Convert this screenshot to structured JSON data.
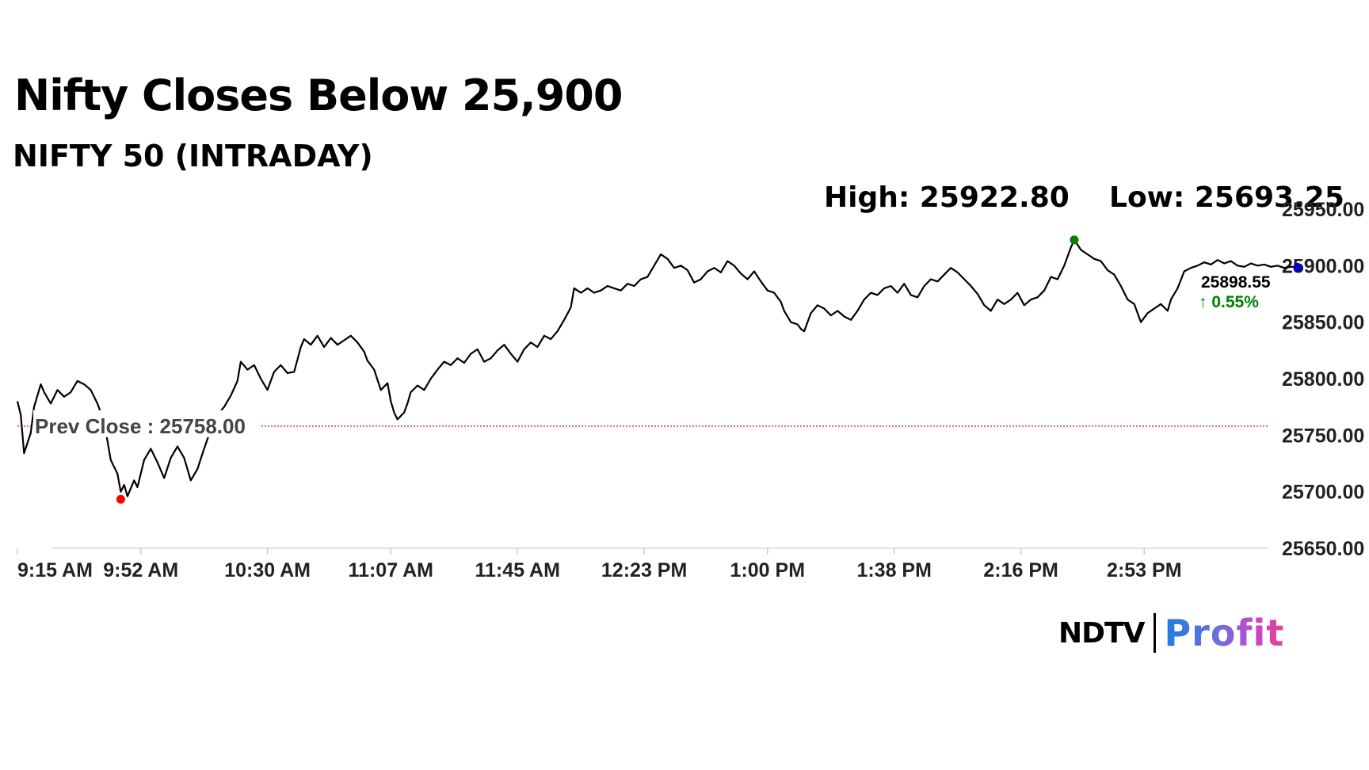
{
  "header": {
    "title": "Nifty Closes Below 25,900",
    "subtitle": "NIFTY 50 (INTRADAY)",
    "high_label": "High: 25922.80",
    "low_label": "Low: 25693.25"
  },
  "logo": {
    "ndtv": "NDTV",
    "profit": "Profit"
  },
  "chart_data": {
    "type": "line",
    "series": [
      {
        "values": [
          [
            0,
            25780
          ],
          [
            1,
            25768
          ],
          [
            2,
            25734
          ],
          [
            4,
            25752
          ],
          [
            5,
            25775
          ],
          [
            7,
            25795
          ],
          [
            8,
            25788
          ],
          [
            10,
            25778
          ],
          [
            12,
            25790
          ],
          [
            14,
            25784
          ],
          [
            16,
            25788
          ],
          [
            18,
            25798
          ],
          [
            20,
            25795
          ],
          [
            22,
            25790
          ],
          [
            24,
            25778
          ],
          [
            26,
            25762
          ],
          [
            27,
            25745
          ],
          [
            28,
            25728
          ],
          [
            30,
            25716
          ],
          [
            31,
            25700
          ],
          [
            32,
            25706
          ],
          [
            33,
            25696
          ],
          [
            34,
            25703
          ],
          [
            35,
            25710
          ],
          [
            36,
            25704
          ],
          [
            38,
            25728
          ],
          [
            40,
            25738
          ],
          [
            42,
            25726
          ],
          [
            44,
            25712
          ],
          [
            46,
            25730
          ],
          [
            48,
            25740
          ],
          [
            50,
            25730
          ],
          [
            52,
            25710
          ],
          [
            54,
            25720
          ],
          [
            56,
            25738
          ],
          [
            58,
            25755
          ],
          [
            60,
            25768
          ],
          [
            62,
            25775
          ],
          [
            64,
            25785
          ],
          [
            66,
            25798
          ],
          [
            67,
            25815
          ],
          [
            69,
            25808
          ],
          [
            71,
            25812
          ],
          [
            73,
            25800
          ],
          [
            75,
            25790
          ],
          [
            77,
            25806
          ],
          [
            79,
            25812
          ],
          [
            81,
            25805
          ],
          [
            83,
            25806
          ],
          [
            85,
            25828
          ],
          [
            86,
            25835
          ],
          [
            88,
            25830
          ],
          [
            90,
            25838
          ],
          [
            92,
            25828
          ],
          [
            94,
            25836
          ],
          [
            96,
            25830
          ],
          [
            98,
            25834
          ],
          [
            100,
            25838
          ],
          [
            102,
            25832
          ],
          [
            104,
            25824
          ],
          [
            105,
            25816
          ],
          [
            107,
            25808
          ],
          [
            109,
            25790
          ],
          [
            111,
            25796
          ],
          [
            112,
            25780
          ],
          [
            113,
            25770
          ],
          [
            114,
            25764
          ],
          [
            116,
            25770
          ],
          [
            117,
            25778
          ],
          [
            118,
            25788
          ],
          [
            120,
            25794
          ],
          [
            122,
            25790
          ],
          [
            124,
            25800
          ],
          [
            126,
            25808
          ],
          [
            128,
            25815
          ],
          [
            130,
            25812
          ],
          [
            132,
            25818
          ],
          [
            134,
            25814
          ],
          [
            136,
            25822
          ],
          [
            138,
            25826
          ],
          [
            140,
            25815
          ],
          [
            142,
            25818
          ],
          [
            144,
            25825
          ],
          [
            146,
            25830
          ],
          [
            148,
            25822
          ],
          [
            150,
            25815
          ],
          [
            152,
            25826
          ],
          [
            154,
            25832
          ],
          [
            156,
            25828
          ],
          [
            158,
            25838
          ],
          [
            160,
            25835
          ],
          [
            162,
            25842
          ],
          [
            164,
            25852
          ],
          [
            166,
            25863
          ],
          [
            167,
            25880
          ],
          [
            169,
            25876
          ],
          [
            171,
            25880
          ],
          [
            173,
            25876
          ],
          [
            175,
            25878
          ],
          [
            177,
            25882
          ],
          [
            179,
            25880
          ],
          [
            181,
            25878
          ],
          [
            183,
            25884
          ],
          [
            185,
            25882
          ],
          [
            187,
            25888
          ],
          [
            189,
            25890
          ],
          [
            191,
            25900
          ],
          [
            193,
            25910
          ],
          [
            195,
            25906
          ],
          [
            197,
            25898
          ],
          [
            199,
            25900
          ],
          [
            201,
            25896
          ],
          [
            203,
            25885
          ],
          [
            205,
            25888
          ],
          [
            207,
            25895
          ],
          [
            209,
            25898
          ],
          [
            211,
            25894
          ],
          [
            213,
            25904
          ],
          [
            215,
            25900
          ],
          [
            217,
            25893
          ],
          [
            219,
            25888
          ],
          [
            221,
            25895
          ],
          [
            223,
            25886
          ],
          [
            225,
            25878
          ],
          [
            227,
            25876
          ],
          [
            229,
            25868
          ],
          [
            230,
            25860
          ],
          [
            232,
            25850
          ],
          [
            234,
            25848
          ],
          [
            235,
            25844
          ],
          [
            236,
            25842
          ],
          [
            238,
            25858
          ],
          [
            240,
            25865
          ],
          [
            242,
            25862
          ],
          [
            244,
            25856
          ],
          [
            246,
            25860
          ],
          [
            248,
            25855
          ],
          [
            250,
            25852
          ],
          [
            252,
            25860
          ],
          [
            254,
            25870
          ],
          [
            256,
            25876
          ],
          [
            258,
            25874
          ],
          [
            260,
            25880
          ],
          [
            262,
            25882
          ],
          [
            264,
            25876
          ],
          [
            266,
            25884
          ],
          [
            268,
            25874
          ],
          [
            270,
            25872
          ],
          [
            272,
            25882
          ],
          [
            274,
            25888
          ],
          [
            276,
            25886
          ],
          [
            278,
            25892
          ],
          [
            280,
            25898
          ],
          [
            282,
            25894
          ],
          [
            284,
            25888
          ],
          [
            286,
            25882
          ],
          [
            288,
            25875
          ],
          [
            290,
            25865
          ],
          [
            292,
            25860
          ],
          [
            294,
            25870
          ],
          [
            296,
            25866
          ],
          [
            298,
            25870
          ],
          [
            300,
            25876
          ],
          [
            302,
            25865
          ],
          [
            304,
            25870
          ],
          [
            306,
            25872
          ],
          [
            308,
            25878
          ],
          [
            310,
            25890
          ],
          [
            312,
            25888
          ],
          [
            314,
            25900
          ],
          [
            316,
            25916
          ],
          [
            317,
            25922.8
          ],
          [
            319,
            25914
          ],
          [
            321,
            25910
          ],
          [
            323,
            25906
          ],
          [
            325,
            25904
          ],
          [
            327,
            25896
          ],
          [
            329,
            25892
          ],
          [
            331,
            25882
          ],
          [
            333,
            25870
          ],
          [
            335,
            25866
          ],
          [
            336,
            25858
          ],
          [
            337,
            25850
          ],
          [
            339,
            25858
          ],
          [
            341,
            25862
          ],
          [
            343,
            25866
          ],
          [
            345,
            25860
          ],
          [
            346,
            25870
          ],
          [
            348,
            25880
          ],
          [
            350,
            25895
          ],
          [
            352,
            25898
          ],
          [
            354,
            25900
          ],
          [
            356,
            25903
          ],
          [
            358,
            25901
          ],
          [
            360,
            25905
          ],
          [
            362,
            25902
          ],
          [
            364,
            25904
          ],
          [
            366,
            25900
          ],
          [
            368,
            25899
          ],
          [
            370,
            25902
          ],
          [
            372,
            25900
          ],
          [
            374,
            25901
          ],
          [
            376,
            25899
          ],
          [
            378,
            25900
          ],
          [
            380,
            25898
          ],
          [
            382,
            25899
          ],
          [
            384,
            25898.55
          ]
        ]
      }
    ],
    "x_tick_labels": [
      "9:15 AM",
      "9:52 AM",
      "10:30 AM",
      "11:07 AM",
      "11:45 AM",
      "12:23 PM",
      "1:00 PM",
      "1:38 PM",
      "2:16 PM",
      "2:53 PM"
    ],
    "x_tick_positions": [
      0,
      37,
      75,
      112,
      150,
      188,
      225,
      263,
      301,
      338
    ],
    "y_ticks": [
      25650,
      25700,
      25750,
      25800,
      25850,
      25900,
      25950
    ],
    "y_tick_labels": [
      "25650.00",
      "25700.00",
      "25750.00",
      "25800.00",
      "25850.00",
      "25900.00",
      "25950.00"
    ],
    "ylim": [
      25650,
      25950
    ],
    "xlim": [
      0,
      375
    ],
    "reference_line": {
      "label": "Prev Close : 25758.00",
      "value": 25758.0
    },
    "high_point": {
      "x": 317,
      "y": 25922.8
    },
    "low_point": {
      "x": 31,
      "y": 25693.25
    },
    "last_value": {
      "label": "25898.55",
      "value": 25898.55,
      "change_label": "↑ 0.55%"
    },
    "colors": {
      "line": "#000000",
      "reference": "#c00000",
      "high": "#008000",
      "low": "#ff0000",
      "last": "#0000cc",
      "change": "#008000",
      "axis_text": "#222222"
    },
    "grid": false
  }
}
